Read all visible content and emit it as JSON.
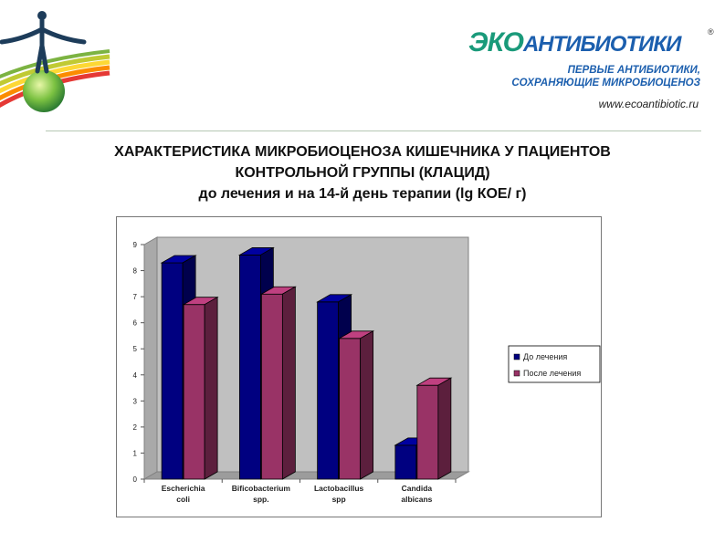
{
  "brand": {
    "name_part1": "ЭКО",
    "name_part2": "АНТИБИОТИКИ",
    "registered": "®",
    "tagline_line1": "ПЕРВЫЕ АНТИБИОТИКИ,",
    "tagline_line2": "СОХРАНЯЮЩИЕ МИКРОБИОЦЕНОЗ",
    "website": "www.ecoantibiotic.ru"
  },
  "title": {
    "line1": "ХАРАКТЕРИСТИКА МИКРОБИОЦЕНОЗА КИШЕЧНИКА У ПАЦИЕНТОВ",
    "line2": "КОНТРОЛЬНОЙ ГРУППЫ (КЛАЦИД)",
    "line3": "до лечения и на 14-й день терапии (lg КОЕ/ г)"
  },
  "chart_data": {
    "type": "bar",
    "categories": [
      [
        "Escherichia",
        "coli"
      ],
      [
        "Bificobacterium",
        "spp."
      ],
      [
        "Lactobacillus",
        "spp"
      ],
      [
        "Candida",
        "albicans"
      ]
    ],
    "series": [
      {
        "name": "До лечения",
        "values": [
          8.3,
          8.6,
          6.8,
          1.3
        ],
        "color": "#000080"
      },
      {
        "name": "После лечения",
        "values": [
          6.7,
          7.1,
          5.4,
          3.6
        ],
        "color": "#993366"
      }
    ],
    "ylim": [
      0,
      9
    ],
    "yticks": [
      "0",
      "1",
      "2",
      "3",
      "4",
      "5",
      "6",
      "7",
      "8",
      "9"
    ],
    "grid": false,
    "wall_color": "#c0c0c0",
    "legend_position": "right"
  }
}
